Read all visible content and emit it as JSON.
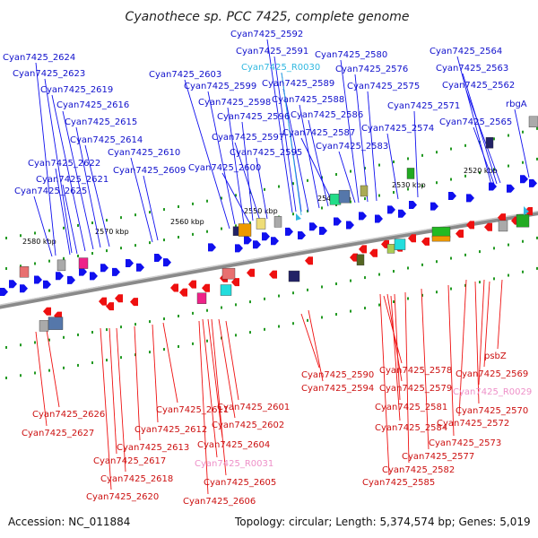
{
  "title": "Cyanothece sp. PCC 7425, complete genome",
  "footer": {
    "accession": "Accession: NC_011884",
    "summary": "Topology: circular; Length: 5,374,574 bp; Genes: 5,019"
  },
  "colors": {
    "forward_strand": "#1010ee",
    "reverse_strand": "#ee1010",
    "rna_gene": "#30b8e0",
    "pseudo_gene": "#ee90c8",
    "backbone": "#888888",
    "tick": "#229922"
  },
  "scale_ticks": [
    "2520 kbp",
    "2530 kbp",
    "2540 kbp",
    "2550 kbp",
    "2560 kbp",
    "2570 kbp",
    "2580 kbp"
  ],
  "forward_labels": [
    "Cyan7425_2624",
    "Cyan7425_2623",
    "Cyan7425_2619",
    "Cyan7425_2616",
    "Cyan7425_2615",
    "Cyan7425_2614",
    "Cyan7425_2622",
    "Cyan7425_2621",
    "Cyan7425_2625",
    "Cyan7425_2610",
    "Cyan7425_2609",
    "Cyan7425_2603",
    "Cyan7425_2599",
    "Cyan7425_2598",
    "Cyan7425_2596",
    "Cyan7425_2597",
    "Cyan7425_2600",
    "Cyan7425_2595",
    "Cyan7425_2592",
    "Cyan7425_2591",
    "Cyan7425_R0030",
    "Cyan7425_2589",
    "Cyan7425_2588",
    "Cyan7425_2586",
    "Cyan7425_2587",
    "Cyan7425_2580",
    "Cyan7425_2576",
    "Cyan7425_2575",
    "Cyan7425_2583",
    "Cyan7425_2574",
    "Cyan7425_2571",
    "Cyan7425_2564",
    "Cyan7425_2563",
    "Cyan7425_2562",
    "Cyan7425_2565",
    "rbgA"
  ],
  "reverse_labels": [
    "Cyan7425_2590",
    "Cyan7425_2594",
    "Cyan7425_2578",
    "Cyan7425_2579",
    "psbZ",
    "Cyan7425_2569",
    "Cyan7425_R0029",
    "Cyan7425_2570",
    "Cyan7425_2572",
    "Cyan7425_2581",
    "Cyan7425_2584",
    "Cyan7425_2573",
    "Cyan7425_2577",
    "Cyan7425_2582",
    "Cyan7425_2585",
    "Cyan7425_2601",
    "Cyan7425_2602",
    "Cyan7425_2611",
    "Cyan7425_2612",
    "Cyan7425_2604",
    "Cyan7425_2613",
    "Cyan7425_2626",
    "Cyan7425_2627",
    "Cyan7425_R0031",
    "Cyan7425_2617",
    "Cyan7425_2605",
    "Cyan7425_2618",
    "Cyan7425_2620",
    "Cyan7425_2606"
  ]
}
